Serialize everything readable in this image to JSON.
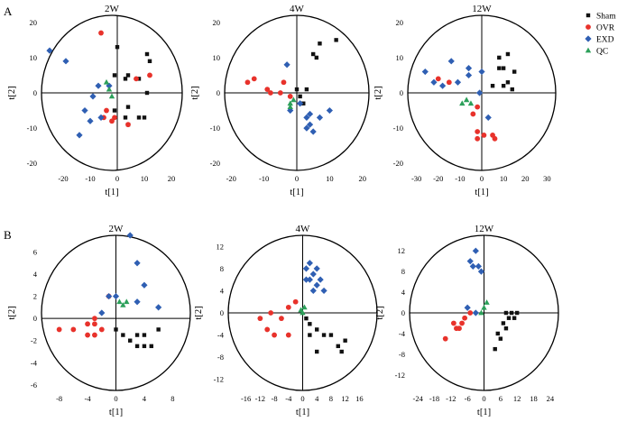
{
  "figure": {
    "panel_labels": [
      "A",
      "B"
    ],
    "colors": {
      "Sham": "#111111",
      "OVR": "#e8322b",
      "EXD": "#2f5fb3",
      "QC": "#2ca05a"
    },
    "markers": {
      "Sham": "square",
      "OVR": "circle",
      "EXD": "diamond",
      "QC": "triangle"
    },
    "legend": [
      {
        "name": "Sham",
        "marker": "square"
      },
      {
        "name": "OVR",
        "marker": "circle"
      },
      {
        "name": "EXD",
        "marker": "diamond"
      },
      {
        "name": "QC",
        "marker": "triangle"
      }
    ]
  },
  "chart_data": [
    {
      "type": "scatter",
      "row": "A",
      "title": "2W",
      "xlabel": "t[1]",
      "ylabel": "t[2]",
      "xlim": [
        -28,
        24
      ],
      "ylim": [
        -22,
        22
      ],
      "xticks": [
        -20,
        -10,
        0,
        10,
        20
      ],
      "yticks": [
        -20,
        -10,
        0,
        10,
        20
      ],
      "series": [
        {
          "name": "Sham",
          "points": [
            [
              0,
              13
            ],
            [
              -1,
              5
            ],
            [
              3,
              4
            ],
            [
              4,
              5
            ],
            [
              11,
              11
            ],
            [
              12,
              9
            ],
            [
              11,
              0
            ],
            [
              8,
              4
            ],
            [
              4,
              -4
            ],
            [
              -1,
              -5
            ],
            [
              10,
              -7
            ],
            [
              8,
              -7
            ],
            [
              3,
              -7
            ],
            [
              4,
              -9
            ]
          ]
        },
        {
          "name": "OVR",
          "points": [
            [
              -6,
              17
            ],
            [
              7,
              4
            ],
            [
              12,
              5
            ],
            [
              -4,
              -5
            ],
            [
              -2,
              -8
            ],
            [
              4,
              -9
            ],
            [
              -1,
              -7
            ],
            [
              -5,
              -7
            ]
          ]
        },
        {
          "name": "EXD",
          "points": [
            [
              -25,
              12
            ],
            [
              -19,
              9
            ],
            [
              -12,
              -5
            ],
            [
              -9,
              -1
            ],
            [
              -7,
              2
            ],
            [
              -10,
              -8
            ],
            [
              -6,
              -7
            ],
            [
              -14,
              -12
            ],
            [
              -3,
              2
            ]
          ]
        },
        {
          "name": "QC",
          "points": [
            [
              -2,
              -1
            ],
            [
              -3,
              1
            ],
            [
              -4,
              3
            ]
          ]
        }
      ]
    },
    {
      "type": "scatter",
      "row": "A",
      "title": "4W",
      "xlabel": "t[1]",
      "ylabel": "t[2]",
      "xlim": [
        -22,
        22
      ],
      "ylim": [
        -22,
        22
      ],
      "xticks": [
        -20,
        -10,
        0,
        10,
        20
      ],
      "yticks": [
        -20,
        -10,
        0,
        10,
        20
      ],
      "series": [
        {
          "name": "Sham",
          "points": [
            [
              12,
              15
            ],
            [
              7,
              14
            ],
            [
              5,
              11
            ],
            [
              6,
              10
            ],
            [
              0,
              1
            ],
            [
              3,
              1
            ],
            [
              1,
              -1
            ],
            [
              2,
              -3
            ]
          ]
        },
        {
          "name": "OVR",
          "points": [
            [
              -15,
              3
            ],
            [
              -13,
              4
            ],
            [
              -9,
              1
            ],
            [
              -8,
              0
            ],
            [
              -5,
              0
            ],
            [
              -4,
              3
            ],
            [
              -2,
              -1
            ]
          ]
        },
        {
          "name": "EXD",
          "points": [
            [
              -3,
              8
            ],
            [
              -2,
              -5
            ],
            [
              1,
              -3
            ],
            [
              3,
              -7
            ],
            [
              4,
              -9
            ],
            [
              5,
              -11
            ],
            [
              3,
              -10
            ],
            [
              7,
              -7
            ],
            [
              10,
              -5
            ],
            [
              4,
              -6
            ]
          ]
        },
        {
          "name": "QC",
          "points": [
            [
              -2,
              -3
            ],
            [
              -1,
              -2
            ],
            [
              -2,
              -4
            ]
          ]
        }
      ]
    },
    {
      "type": "scatter",
      "row": "A",
      "title": "12W",
      "xlabel": "t[1]",
      "ylabel": "t[2]",
      "xlim": [
        -34,
        34
      ],
      "ylim": [
        -22,
        22
      ],
      "xticks": [
        -30,
        -20,
        -10,
        0,
        10,
        20,
        30
      ],
      "yticks": [
        -20,
        -10,
        0,
        10,
        20
      ],
      "series": [
        {
          "name": "Sham",
          "points": [
            [
              8,
              10
            ],
            [
              12,
              11
            ],
            [
              10,
              7
            ],
            [
              15,
              6
            ],
            [
              8,
              7
            ],
            [
              12,
              3
            ],
            [
              5,
              2
            ],
            [
              10,
              2
            ],
            [
              14,
              1
            ]
          ]
        },
        {
          "name": "OVR",
          "points": [
            [
              -20,
              4
            ],
            [
              -15,
              3
            ],
            [
              -2,
              -4
            ],
            [
              -4,
              -6
            ],
            [
              -2,
              -11
            ],
            [
              1,
              -12
            ],
            [
              5,
              -12
            ],
            [
              -2,
              -13
            ],
            [
              6,
              -13
            ]
          ]
        },
        {
          "name": "EXD",
          "points": [
            [
              -26,
              6
            ],
            [
              -22,
              3
            ],
            [
              -18,
              2
            ],
            [
              -14,
              9
            ],
            [
              -11,
              3
            ],
            [
              -6,
              7
            ],
            [
              -6,
              5
            ],
            [
              -1,
              0
            ],
            [
              0,
              6
            ],
            [
              3,
              -7
            ]
          ]
        },
        {
          "name": "QC",
          "points": [
            [
              -9,
              -3
            ],
            [
              -7,
              -2
            ],
            [
              -5,
              -3
            ]
          ]
        }
      ]
    },
    {
      "type": "scatter",
      "row": "B",
      "title": "2W",
      "xlabel": "t[1]",
      "ylabel": "t[2]",
      "xlim": [
        -10.5,
        10.5
      ],
      "ylim": [
        -6.5,
        7.5
      ],
      "xticks": [
        -8,
        -4,
        0,
        4,
        8
      ],
      "yticks": [
        -6,
        -4,
        -2,
        0,
        2,
        4,
        6
      ],
      "series": [
        {
          "name": "Sham",
          "points": [
            [
              3,
              -1.5
            ],
            [
              4,
              -1.5
            ],
            [
              4,
              -2.5
            ],
            [
              5,
              -2.5
            ],
            [
              1,
              -1.5
            ],
            [
              6,
              -1
            ],
            [
              2,
              -2
            ],
            [
              3,
              -2.5
            ],
            [
              0,
              -1
            ]
          ]
        },
        {
          "name": "OVR",
          "points": [
            [
              -8,
              -1
            ],
            [
              -6,
              -1
            ],
            [
              -4,
              -1.5
            ],
            [
              -3,
              -1.5
            ],
            [
              -2,
              -1
            ],
            [
              -3,
              0
            ],
            [
              -1,
              2
            ],
            [
              -4,
              -0.5
            ],
            [
              -3,
              -0.5
            ]
          ]
        },
        {
          "name": "EXD",
          "points": [
            [
              2,
              7.5
            ],
            [
              3,
              5
            ],
            [
              4,
              3
            ],
            [
              3,
              1.5
            ],
            [
              6,
              1
            ],
            [
              -1,
              2
            ],
            [
              -2,
              0.5
            ],
            [
              0,
              2
            ]
          ]
        },
        {
          "name": "QC",
          "points": [
            [
              0.5,
              1.5
            ],
            [
              1,
              1.2
            ],
            [
              1.5,
              1.5
            ]
          ]
        }
      ]
    },
    {
      "type": "scatter",
      "row": "B",
      "title": "4W",
      "xlabel": "t[1]",
      "ylabel": "t[2]",
      "xlim": [
        -21,
        21
      ],
      "ylim": [
        -14,
        14
      ],
      "xticks": [
        -16,
        -12,
        -8,
        -4,
        0,
        4,
        8,
        12,
        16
      ],
      "yticks": [
        -12,
        -8,
        -4,
        0,
        4,
        8,
        12
      ],
      "series": [
        {
          "name": "Sham",
          "points": [
            [
              2,
              -2
            ],
            [
              4,
              -3
            ],
            [
              6,
              -4
            ],
            [
              8,
              -4
            ],
            [
              10,
              -6
            ],
            [
              11,
              -7
            ],
            [
              12,
              -5
            ],
            [
              4,
              -7
            ],
            [
              2,
              -4
            ],
            [
              1,
              -1
            ]
          ]
        },
        {
          "name": "OVR",
          "points": [
            [
              -12,
              -1
            ],
            [
              -10,
              -3
            ],
            [
              -8,
              -4
            ],
            [
              -4,
              -4
            ],
            [
              -6,
              -1
            ],
            [
              -4,
              1
            ],
            [
              -2,
              2
            ],
            [
              -9,
              0
            ]
          ]
        },
        {
          "name": "EXD",
          "points": [
            [
              1,
              8
            ],
            [
              2,
              6
            ],
            [
              3,
              7
            ],
            [
              4,
              8
            ],
            [
              5,
              6
            ],
            [
              3,
              4
            ],
            [
              6,
              4
            ],
            [
              4,
              5
            ],
            [
              1,
              6
            ],
            [
              2,
              9
            ]
          ]
        },
        {
          "name": "QC",
          "points": [
            [
              0,
              0
            ],
            [
              0.5,
              1
            ],
            [
              -0.5,
              0.5
            ]
          ]
        }
      ]
    },
    {
      "type": "scatter",
      "row": "B",
      "title": "12W",
      "xlabel": "t[1]",
      "ylabel": "t[2]",
      "xlim": [
        -27,
        27
      ],
      "ylim": [
        -15,
        15
      ],
      "xticks": [
        -24,
        -18,
        -12,
        -6,
        0,
        6,
        12,
        18,
        24
      ],
      "yticks": [
        -12,
        -8,
        -4,
        0,
        4,
        8,
        12
      ],
      "series": [
        {
          "name": "Sham",
          "points": [
            [
              8,
              0
            ],
            [
              10,
              0
            ],
            [
              12,
              0
            ],
            [
              7,
              -2
            ],
            [
              9,
              -1
            ],
            [
              5,
              -4
            ],
            [
              6,
              -5
            ],
            [
              4,
              -7
            ],
            [
              8,
              -3
            ],
            [
              11,
              -1
            ]
          ]
        },
        {
          "name": "OVR",
          "points": [
            [
              -14,
              -5
            ],
            [
              -10,
              -3
            ],
            [
              -9,
              -3
            ],
            [
              -7,
              -1
            ],
            [
              -5,
              0
            ],
            [
              -11,
              -2
            ],
            [
              -8,
              -2
            ]
          ]
        },
        {
          "name": "EXD",
          "points": [
            [
              -3,
              12
            ],
            [
              -5,
              10
            ],
            [
              -2,
              9
            ],
            [
              -6,
              1
            ],
            [
              -3,
              0
            ],
            [
              -1,
              8
            ],
            [
              -4,
              9
            ]
          ]
        },
        {
          "name": "QC",
          "points": [
            [
              0,
              1
            ],
            [
              1,
              2
            ],
            [
              -1,
              0
            ]
          ]
        }
      ]
    }
  ]
}
